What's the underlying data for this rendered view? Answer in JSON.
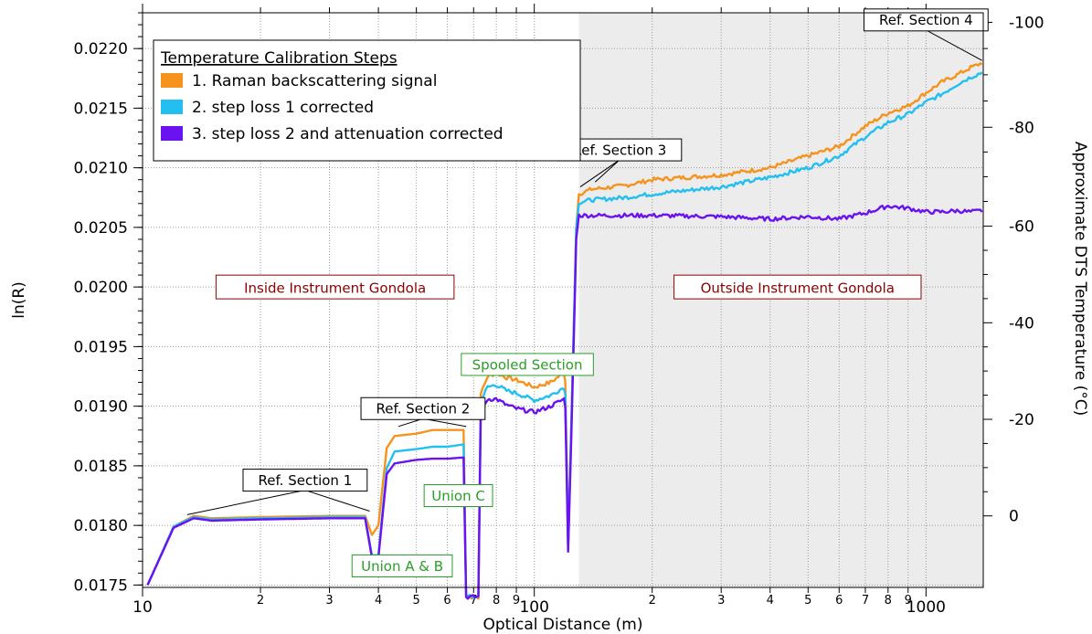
{
  "colors": {
    "series1": "#f5931e",
    "series2": "#22bff0",
    "series3": "#6a12f0",
    "shade": "#ececec",
    "region_label": "#8b0000",
    "green_label": "#2a9d2a"
  },
  "chart_data": {
    "type": "line",
    "title": "",
    "xlabel": "Optical Distance (m)",
    "ylabel": "ln(R)",
    "y2label": "Approximate DTS Temperature (°C)",
    "x_scale": "log",
    "xlim": [
      10,
      1400
    ],
    "ylim": [
      0.01748,
      0.0223
    ],
    "y2lim_top_to_bottom": [
      -100,
      0
    ],
    "grid": true,
    "x_major_ticks": [
      {
        "value": 10,
        "label": "10"
      },
      {
        "value": 100,
        "label": "100"
      },
      {
        "value": 1000,
        "label": "1000"
      }
    ],
    "x_minor_ticks": [
      {
        "value": 20,
        "label": "2"
      },
      {
        "value": 30,
        "label": "3"
      },
      {
        "value": 40,
        "label": "4"
      },
      {
        "value": 50,
        "label": "5"
      },
      {
        "value": 60,
        "label": "6"
      },
      {
        "value": 70,
        "label": "7"
      },
      {
        "value": 80,
        "label": "8"
      },
      {
        "value": 90,
        "label": "9"
      },
      {
        "value": 200,
        "label": "2"
      },
      {
        "value": 300,
        "label": "3"
      },
      {
        "value": 400,
        "label": "4"
      },
      {
        "value": 500,
        "label": "5"
      },
      {
        "value": 600,
        "label": "6"
      },
      {
        "value": 700,
        "label": "7"
      },
      {
        "value": 800,
        "label": "8"
      },
      {
        "value": 900,
        "label": "9"
      }
    ],
    "y_ticks": [
      {
        "value": 0.0175,
        "label": "0.0175"
      },
      {
        "value": 0.018,
        "label": "0.0180"
      },
      {
        "value": 0.0185,
        "label": "0.0185"
      },
      {
        "value": 0.019,
        "label": "0.0190"
      },
      {
        "value": 0.0195,
        "label": "0.0195"
      },
      {
        "value": 0.02,
        "label": "0.0200"
      },
      {
        "value": 0.0205,
        "label": "0.0205"
      },
      {
        "value": 0.021,
        "label": "0.0210"
      },
      {
        "value": 0.0215,
        "label": "0.0215"
      },
      {
        "value": 0.022,
        "label": "0.0220"
      }
    ],
    "y2_ticks": [
      {
        "value": -100,
        "label": "-100"
      },
      {
        "value": -80,
        "label": "-80"
      },
      {
        "value": -60,
        "label": "-60"
      },
      {
        "value": -40,
        "label": "-40"
      },
      {
        "value": -20,
        "label": "-20"
      },
      {
        "value": 0,
        "label": "0"
      }
    ],
    "y2_tick_map": [
      {
        "y2": -100,
        "y": 0.02222
      },
      {
        "y2": -80,
        "y": 0.02134
      },
      {
        "y2": -60,
        "y": 0.02051
      },
      {
        "y2": -40,
        "y": 0.0197
      },
      {
        "y2": -20,
        "y": 0.01889
      },
      {
        "y2": 0,
        "y": 0.01808
      }
    ],
    "shaded_region": {
      "x_from": 130,
      "x_to": 1400
    },
    "legend": {
      "title": "Temperature Calibration Steps",
      "position": "top-left"
    },
    "series": [
      {
        "name": "1. Raman backscattering signal",
        "points": [
          [
            10.3,
            0.0175
          ],
          [
            12,
            0.01799
          ],
          [
            13.5,
            0.01808
          ],
          [
            15,
            0.01806
          ],
          [
            20,
            0.01807
          ],
          [
            30,
            0.01808
          ],
          [
            37,
            0.01808
          ],
          [
            38.5,
            0.01792
          ],
          [
            40,
            0.018
          ],
          [
            42,
            0.01865
          ],
          [
            44,
            0.01875
          ],
          [
            50,
            0.01877
          ],
          [
            55,
            0.0188
          ],
          [
            60,
            0.0188
          ],
          [
            66,
            0.0188
          ],
          [
            67,
            0.0174
          ],
          [
            72,
            0.0174
          ],
          [
            73,
            0.0191
          ],
          [
            76,
            0.01925
          ],
          [
            80,
            0.01928
          ],
          [
            85,
            0.01924
          ],
          [
            90,
            0.01922
          ],
          [
            100,
            0.01916
          ],
          [
            110,
            0.0192
          ],
          [
            119,
            0.01928
          ],
          [
            120,
            0.01922
          ],
          [
            122,
            0.01782
          ],
          [
            124,
            0.0187
          ],
          [
            128,
            0.0205
          ],
          [
            130,
            0.02078
          ],
          [
            140,
            0.02082
          ],
          [
            170,
            0.02085
          ],
          [
            200,
            0.0209
          ],
          [
            300,
            0.02094
          ],
          [
            400,
            0.021
          ],
          [
            500,
            0.0211
          ],
          [
            600,
            0.02118
          ],
          [
            700,
            0.02135
          ],
          [
            800,
            0.02146
          ],
          [
            900,
            0.02152
          ],
          [
            1000,
            0.02163
          ],
          [
            1100,
            0.02172
          ],
          [
            1200,
            0.02178
          ],
          [
            1300,
            0.02184
          ],
          [
            1390,
            0.02188
          ]
        ]
      },
      {
        "name": "2. step loss 1 corrected",
        "points": [
          [
            10.3,
            0.0175
          ],
          [
            12,
            0.01799
          ],
          [
            13.5,
            0.01807
          ],
          [
            15,
            0.01805
          ],
          [
            20,
            0.01806
          ],
          [
            30,
            0.01807
          ],
          [
            37,
            0.01807
          ],
          [
            38.5,
            0.01775
          ],
          [
            40,
            0.01775
          ],
          [
            42,
            0.01848
          ],
          [
            44,
            0.01862
          ],
          [
            50,
            0.01864
          ],
          [
            55,
            0.01866
          ],
          [
            60,
            0.01866
          ],
          [
            66,
            0.01868
          ],
          [
            67,
            0.0174
          ],
          [
            72,
            0.0174
          ],
          [
            73,
            0.01905
          ],
          [
            76,
            0.01916
          ],
          [
            80,
            0.01918
          ],
          [
            85,
            0.01913
          ],
          [
            90,
            0.01911
          ],
          [
            100,
            0.01905
          ],
          [
            110,
            0.01909
          ],
          [
            119,
            0.01916
          ],
          [
            120,
            0.0191
          ],
          [
            122,
            0.01782
          ],
          [
            124,
            0.0187
          ],
          [
            128,
            0.0205
          ],
          [
            130,
            0.02071
          ],
          [
            140,
            0.02073
          ],
          [
            170,
            0.02075
          ],
          [
            200,
            0.02078
          ],
          [
            300,
            0.02084
          ],
          [
            400,
            0.02092
          ],
          [
            500,
            0.021
          ],
          [
            600,
            0.0211
          ],
          [
            700,
            0.02126
          ],
          [
            800,
            0.02138
          ],
          [
            900,
            0.02145
          ],
          [
            1000,
            0.02155
          ],
          [
            1100,
            0.02162
          ],
          [
            1200,
            0.0217
          ],
          [
            1300,
            0.02176
          ],
          [
            1390,
            0.0218
          ]
        ]
      },
      {
        "name": "3. step loss 2 and attenuation corrected",
        "points": [
          [
            10.3,
            0.0175
          ],
          [
            12,
            0.01798
          ],
          [
            13.5,
            0.01806
          ],
          [
            15,
            0.01804
          ],
          [
            20,
            0.01805
          ],
          [
            30,
            0.01806
          ],
          [
            37,
            0.01806
          ],
          [
            38.5,
            0.01773
          ],
          [
            40,
            0.01773
          ],
          [
            42,
            0.01843
          ],
          [
            44,
            0.01852
          ],
          [
            50,
            0.01855
          ],
          [
            55,
            0.01856
          ],
          [
            60,
            0.01856
          ],
          [
            66,
            0.01857
          ],
          [
            67,
            0.0174
          ],
          [
            72,
            0.0174
          ],
          [
            73,
            0.01893
          ],
          [
            76,
            0.01906
          ],
          [
            80,
            0.01906
          ],
          [
            85,
            0.01901
          ],
          [
            90,
            0.01898
          ],
          [
            100,
            0.01895
          ],
          [
            110,
            0.019
          ],
          [
            119,
            0.01906
          ],
          [
            120,
            0.019
          ],
          [
            122,
            0.01778
          ],
          [
            124,
            0.0186
          ],
          [
            128,
            0.0204
          ],
          [
            130,
            0.0206
          ],
          [
            140,
            0.0206
          ],
          [
            200,
            0.0206
          ],
          [
            300,
            0.02059
          ],
          [
            400,
            0.02057
          ],
          [
            500,
            0.02059
          ],
          [
            600,
            0.02057
          ],
          [
            700,
            0.02062
          ],
          [
            800,
            0.02068
          ],
          [
            900,
            0.02066
          ],
          [
            1000,
            0.02063
          ],
          [
            1100,
            0.02063
          ],
          [
            1200,
            0.02064
          ],
          [
            1300,
            0.02063
          ],
          [
            1390,
            0.02064
          ]
        ]
      }
    ],
    "annotations": [
      {
        "text": "Ref. Section 1",
        "style": "black",
        "anchor": [
          26,
          0.01838
        ],
        "pointers": [
          [
            13,
            0.01809
          ],
          [
            38,
            0.01812
          ]
        ]
      },
      {
        "text": "Ref. Section 2",
        "style": "black",
        "anchor": [
          52,
          0.01898
        ],
        "pointers": [
          [
            45,
            0.01883
          ],
          [
            67,
            0.01883
          ]
        ]
      },
      {
        "text": "Ref. Section 3",
        "style": "black",
        "anchor": [
          165,
          0.02115
        ],
        "pointers": [
          [
            131,
            0.02084
          ],
          [
            143,
            0.02088
          ]
        ]
      },
      {
        "text": "Ref. Section 4",
        "style": "black",
        "anchor": [
          1000,
          0.02224
        ],
        "pointers": [
          [
            1390,
            0.0219
          ]
        ]
      },
      {
        "text": "Inside Instrument Gondola",
        "style": "region",
        "anchor": [
          31,
          0.02
        ]
      },
      {
        "text": "Outside Instrument Gondola",
        "style": "region",
        "anchor": [
          470,
          0.02
        ]
      },
      {
        "text": "Spooled Section",
        "style": "green",
        "anchor": [
          96,
          0.01935
        ]
      },
      {
        "text": "Union C",
        "style": "green",
        "anchor": [
          64,
          0.01825
        ]
      },
      {
        "text": "Union A & B",
        "style": "green",
        "anchor": [
          46,
          0.01766
        ]
      }
    ]
  }
}
